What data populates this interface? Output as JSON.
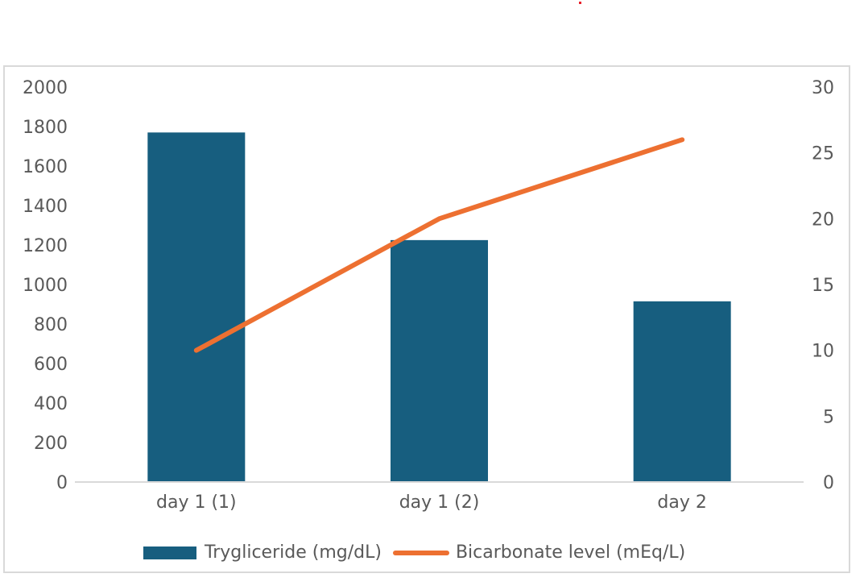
{
  "chart_data": {
    "type": "bar",
    "title": "",
    "categories": [
      "day 1 (1)",
      "day 1 (2)",
      "day 2"
    ],
    "series": [
      {
        "name": "Trygliceride (mg/dL)",
        "type": "bar",
        "axis": "left",
        "color": "#175e7f",
        "values": [
          1770,
          1225,
          915
        ]
      },
      {
        "name": "Bicarbonate level (mEq/L)",
        "type": "line",
        "axis": "right",
        "color": "#ed7031",
        "values": [
          10,
          20,
          26
        ]
      }
    ],
    "left_axis": {
      "ticks": [
        "0",
        "200",
        "400",
        "600",
        "800",
        "1000",
        "1200",
        "1400",
        "1600",
        "1800",
        "2000"
      ],
      "ylim": [
        0,
        2000
      ]
    },
    "right_axis": {
      "ticks": [
        "0",
        "5",
        "10",
        "15",
        "20",
        "25",
        "30"
      ],
      "ylim": [
        0,
        30
      ]
    },
    "xlabel": "",
    "ylabel": "",
    "y2label": "",
    "grid": false,
    "legend_position": "bottom"
  },
  "legend": {
    "bar_label": "Trygliceride (mg/dL)",
    "line_label": "Bicarbonate level (mEq/L)"
  }
}
